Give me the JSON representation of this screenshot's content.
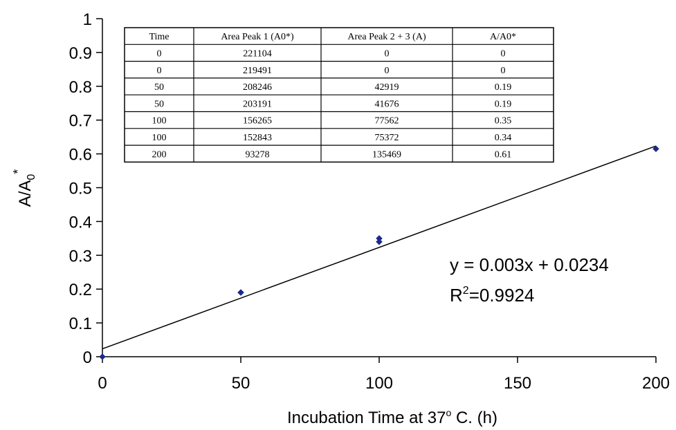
{
  "chart_data": {
    "type": "scatter",
    "x": [
      0,
      0,
      50,
      50,
      100,
      100,
      200
    ],
    "y": [
      0,
      0,
      0.19,
      0.19,
      0.35,
      0.34,
      0.615
    ],
    "xlim": [
      0,
      200
    ],
    "ylim": [
      0,
      1
    ],
    "xticks": [
      "0",
      "50",
      "100",
      "150",
      "200"
    ],
    "yticks": [
      "0",
      "0.1",
      "0.2",
      "0.3",
      "0.4",
      "0.5",
      "0.6",
      "0.7",
      "0.8",
      "0.9",
      "1"
    ],
    "xlabel": "Incubation Time at 37° C. (h)",
    "xlabel_parts": {
      "pre": "Incubation Time at 37",
      "sup": "o",
      "post": " C. (h)"
    },
    "ylabel_parts": {
      "base": "A/A",
      "sub": "0",
      "sup": "*"
    },
    "marker_color": "#1a2a8c",
    "trendline": {
      "slope": 0.003,
      "intercept": 0.0234
    },
    "equation": "y = 0.003x + 0.0234",
    "r2_parts": {
      "base": "R",
      "sup": "2",
      "rest": "=0.9924"
    },
    "grid": false,
    "legend": "none",
    "table": {
      "headers": [
        "Time",
        "Area Peak 1 (A0*)",
        "Area Peak 2 + 3 (A)",
        "A/A0*"
      ],
      "rows": [
        [
          "0",
          "221104",
          "0",
          "0"
        ],
        [
          "0",
          "219491",
          "0",
          "0"
        ],
        [
          "50",
          "208246",
          "42919",
          "0.19"
        ],
        [
          "50",
          "203191",
          "41676",
          "0.19"
        ],
        [
          "100",
          "156265",
          "77562",
          "0.35"
        ],
        [
          "100",
          "152843",
          "75372",
          "0.34"
        ],
        [
          "200",
          "93278",
          "135469",
          "0.61"
        ]
      ]
    }
  }
}
